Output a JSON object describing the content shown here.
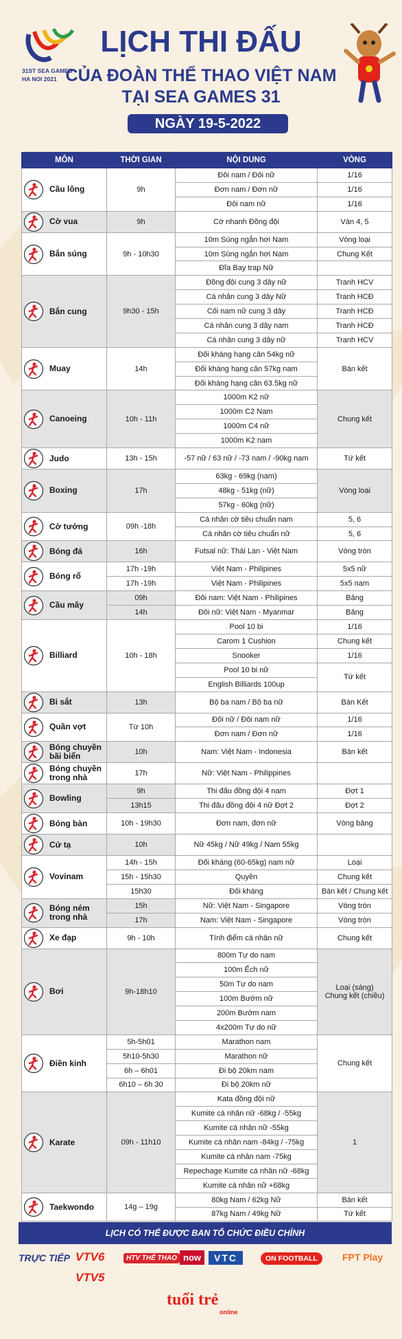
{
  "header": {
    "logo_line1": "31ST SEA GAMES",
    "logo_line2": "HA NOI 2021",
    "title": "LỊCH THI ĐẤU",
    "subtitle1": "CỦA ĐOÀN THỂ THAO VIỆT NAM",
    "subtitle2": "TẠI SEA GAMES 31",
    "date": "NGÀY 19-5-2022"
  },
  "columns": [
    "MÔN",
    "THỜI GIAN",
    "NỘI DUNG",
    "VÒNG"
  ],
  "schedule": [
    {
      "sport": "Cầu lông",
      "time": "9h",
      "contents": [
        "Đôi nam / Đôi nữ",
        "Đơn nam / Đơn nữ",
        "Đôi nam nữ"
      ],
      "round": [
        "1/16",
        "1/16",
        "1/16"
      ]
    },
    {
      "sport": "Cờ vua",
      "time": "9h",
      "contents": [
        "Cờ nhanh Đồng đội"
      ],
      "round": [
        "Ván 4, 5"
      ]
    },
    {
      "sport": "Bắn súng",
      "time": "9h - 10h30",
      "contents": [
        "10m Súng ngắn hơi Nam",
        "10m Súng ngắn hơi Nam",
        "Đĩa Bay trap Nữ"
      ],
      "round": [
        "Vòng loại",
        "Chung Kết",
        null
      ]
    },
    {
      "sport": "Bắn cung",
      "time": "9h30 - 15h",
      "contents": [
        "Đồng đội cung 3 dây nữ",
        "Cá nhân cung 3 dây Nữ",
        "Cối nam nữ cung 3 dây",
        "Cá nhân cung 3 dây nam",
        "Cá nhân cung 3 dây nữ"
      ],
      "round": [
        "Tranh HCV",
        "Tranh HCĐ",
        "Tranh HCĐ",
        "Tranh HCĐ",
        "Tranh HCV"
      ]
    },
    {
      "sport": "Muay",
      "time": "14h",
      "contents": [
        "Đối kháng hạng cân 54kg nữ",
        "Đối kháng hạng cân 57kg nam",
        "Đối kháng hạng cân  63.5kg nữ"
      ],
      "round": "Bán kết"
    },
    {
      "sport": "Canoeing",
      "time": "10h - 11h",
      "contents": [
        "1000m K2 nữ",
        "1000m C2 Nam",
        "1000m C4 nữ",
        "1000m K2 nam"
      ],
      "round": "Chung kết"
    },
    {
      "sport": "Judo",
      "time": "13h - 15h",
      "contents": [
        "-57 nữ  / 63 nữ / -73 nam / -90kg nam"
      ],
      "round": [
        "Tứ kết"
      ]
    },
    {
      "sport": "Boxing",
      "time": "17h",
      "contents": [
        "63kg - 69kg (nam)",
        "48kg - 51kg (nữ)",
        "57kg - 60kg (nữ)"
      ],
      "round": "Vòng loại"
    },
    {
      "sport": "Cờ tướng",
      "time": "09h -18h",
      "contents": [
        "Cá nhân cờ tiêu chuẩn nam",
        "Cá nhân cờ tiêu chuẩn nữ"
      ],
      "round": [
        "5, 6",
        "5, 6"
      ]
    },
    {
      "sport": "Bóng đá",
      "time": "16h",
      "contents": [
        "Futsal nữ: Thái Lan - Việt Nam"
      ],
      "round": [
        "Vòng tròn"
      ]
    },
    {
      "sport": "Bóng rổ",
      "time": [
        "17h -19h",
        "17h -19h"
      ],
      "contents": [
        "Việt Nam - Philipines",
        "Việt Nam - Philipines"
      ],
      "round": [
        "5x5 nữ",
        "5x5 nam"
      ]
    },
    {
      "sport": "Cầu mây",
      "time": [
        "09h",
        "14h"
      ],
      "contents": [
        "Đôi nam: Việt Nam - Philipines",
        "Đôi nữ: Việt Nam - Myanmar"
      ],
      "round": [
        "Bảng",
        "Bảng"
      ]
    },
    {
      "sport": "Billiard",
      "time": "10h - 18h",
      "contents": [
        "Pool 10 bi",
        "Carom 1 Cushion",
        "Snooker",
        [
          "Pool 10 bi nữ",
          "English Billiards 100up"
        ]
      ],
      "round": [
        "1/16",
        "Chung kết",
        "1/16",
        "Tứ kết"
      ]
    },
    {
      "sport": "Bi sắt",
      "time": "13h",
      "contents": [
        "Bộ ba nam / Bộ ba nữ"
      ],
      "round": [
        "Bán Kết"
      ]
    },
    {
      "sport": "Quần vợt",
      "time": "Từ 10h",
      "contents": [
        "Đôi nữ / Đôi nam nữ",
        "Đơn nam / Đơn nữ"
      ],
      "round": [
        "1/16",
        "1/16"
      ]
    },
    {
      "sport": "Bóng chuyền\nbãi biển",
      "time": "10h",
      "contents": [
        "Nam: Việt Nam - Indonesia"
      ],
      "round": [
        "Bán kết"
      ]
    },
    {
      "sport": "Bóng chuyền\ntrong nhà",
      "time": "17h",
      "contents": [
        "Nữ: Việt Nam - Philippines"
      ],
      "round": [
        null
      ]
    },
    {
      "sport": "Bowling",
      "time": [
        "9h",
        "13h15"
      ],
      "contents": [
        "Thi đấu đồng đội 4 nam",
        "Thi đấu đồng đội 4 nữ Đợt 2"
      ],
      "round": [
        "Đợt 1",
        "Đợt 2"
      ]
    },
    {
      "sport": "Bóng bàn",
      "time": "10h - 19h30",
      "contents": [
        "Đơn nam, đơn nữ"
      ],
      "round": [
        "Vòng bảng"
      ]
    },
    {
      "sport": "Cử tạ",
      "time": "10h",
      "contents": [
        "Nữ 45kg / Nữ 49kg / Nam 55kg"
      ],
      "round": [
        null
      ]
    },
    {
      "sport": "Vovinam",
      "time": [
        "14h - 15h",
        "15h - 15h30",
        "15h30"
      ],
      "contents": [
        "Đối kháng (60-65kg) nam nữ",
        "Quyền",
        "Đối kháng"
      ],
      "round": [
        "Loại",
        "Chung kết",
        "Bán kết / Chung kết"
      ]
    },
    {
      "sport": "Bóng ném\ntrong nhà",
      "time": [
        "15h",
        "17h"
      ],
      "contents": [
        "Nữ: Việt Nam - Singapore",
        "Nam: Việt Nam - Singapore"
      ],
      "round": [
        "Vòng tròn",
        "Vòng tròn"
      ]
    },
    {
      "sport": "Xe đạp",
      "time": "9h - 10h",
      "contents": [
        "Tính điểm cá nhân nữ"
      ],
      "round": [
        "Chung kết"
      ]
    },
    {
      "sport": "Bơi",
      "time": "9h-18h10",
      "contents": [
        "800m Tự do nam",
        "100m Ếch nữ",
        "50m Tự do nam",
        "100m Bướm nữ",
        "200m Bướm nam",
        "4x200m Tự do nữ"
      ],
      "round": "Loại (sáng)\nChung kết (chiều)"
    },
    {
      "sport": "Điền kinh",
      "time": [
        "5h-5h01",
        "5h10-5h30",
        "6h – 6h01",
        "6h10 – 6h 30"
      ],
      "contents": [
        "Marathon nam",
        "Marathon nữ",
        "Đi bộ 20km nam",
        "Đi bộ 20km nữ"
      ],
      "round": "Chung kết"
    },
    {
      "sport": "Karate",
      "time": "09h - 11h10",
      "contents": [
        "Kata đồng đội nữ",
        "Kumite cá nhân nữ -68kg / -55kg",
        "Kumite cá nhân nữ -55kg",
        "Kumite cá nhân nam -84kg / -75kg",
        "Kumite cá nhân nam -75kg",
        "Repechage Kumite cá nhân nữ -68kg",
        "Kumite cá nhân nữ +68kg"
      ],
      "round": "1"
    },
    {
      "sport": "Taekwondo",
      "time": "14g – 19g",
      "contents": [
        "80kg Nam / 62kg Nữ",
        "87kg Nam / 49kg Nữ"
      ],
      "round": [
        "Bán kết",
        "Tứ kết"
      ]
    }
  ],
  "footer": {
    "note": "LỊCH CÓ THỂ ĐƯỢC BAN TỔ CHỨC ĐIỀU CHỈNH",
    "live_label": "TRỰC TIẾP",
    "channels": [
      "VTV6",
      "HTV THỂ THAO",
      "now",
      "VTC",
      "ON FOOTBALL",
      "FPT Play",
      "VTV5"
    ],
    "brand": "tuổi trẻ",
    "brand_sub": "online"
  }
}
